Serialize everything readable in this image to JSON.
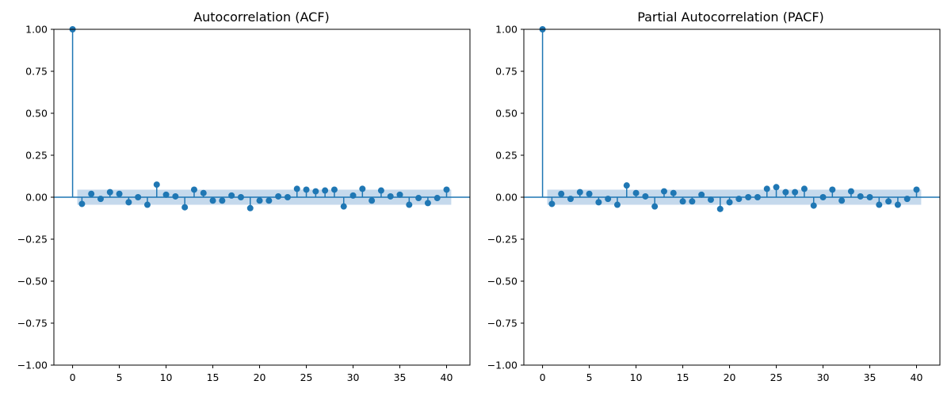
{
  "chart_data": [
    {
      "type": "stem",
      "title": "Autocorrelation (ACF)",
      "xlabel": "",
      "ylabel": "",
      "xlim": [
        -2,
        42.5
      ],
      "ylim": [
        -1.0,
        1.0
      ],
      "xticks": [
        0,
        5,
        10,
        15,
        20,
        25,
        30,
        35,
        40
      ],
      "xtick_labels": [
        "0",
        "5",
        "10",
        "15",
        "20",
        "25",
        "30",
        "35",
        "40"
      ],
      "yticks": [
        1.0,
        0.75,
        0.5,
        0.25,
        0.0,
        -0.25,
        -0.5,
        -0.75,
        -1.0
      ],
      "ytick_labels": [
        "1.00",
        "0.75",
        "0.50",
        "0.25",
        "0.00",
        "−0.25",
        "−0.50",
        "−0.75",
        "−1.00"
      ],
      "confidence_band": 0.045,
      "x": [
        0,
        1,
        2,
        3,
        4,
        5,
        6,
        7,
        8,
        9,
        10,
        11,
        12,
        13,
        14,
        15,
        16,
        17,
        18,
        19,
        20,
        21,
        22,
        23,
        24,
        25,
        26,
        27,
        28,
        29,
        30,
        31,
        32,
        33,
        34,
        35,
        36,
        37,
        38,
        39,
        40
      ],
      "values": [
        1.0,
        -0.04,
        0.02,
        -0.01,
        0.03,
        0.02,
        -0.03,
        0.0,
        -0.045,
        0.075,
        0.015,
        0.005,
        -0.06,
        0.045,
        0.025,
        -0.02,
        -0.02,
        0.01,
        0.0,
        -0.065,
        -0.02,
        -0.02,
        0.005,
        0.0,
        0.05,
        0.045,
        0.035,
        0.04,
        0.045,
        -0.055,
        0.01,
        0.05,
        -0.02,
        0.04,
        0.005,
        0.015,
        -0.045,
        -0.005,
        -0.035,
        -0.005,
        0.045
      ],
      "color": "#1f77b4",
      "band_color": "#c5d9ec",
      "grid": false
    },
    {
      "type": "stem",
      "title": "Partial Autocorrelation (PACF)",
      "xlabel": "",
      "ylabel": "",
      "xlim": [
        -2,
        42.5
      ],
      "ylim": [
        -1.0,
        1.0
      ],
      "xticks": [
        0,
        5,
        10,
        15,
        20,
        25,
        30,
        35,
        40
      ],
      "xtick_labels": [
        "0",
        "5",
        "10",
        "15",
        "20",
        "25",
        "30",
        "35",
        "40"
      ],
      "yticks": [
        1.0,
        0.75,
        0.5,
        0.25,
        0.0,
        -0.25,
        -0.5,
        -0.75,
        -1.0
      ],
      "ytick_labels": [
        "1.00",
        "0.75",
        "0.50",
        "0.25",
        "0.00",
        "−0.25",
        "−0.50",
        "−0.75",
        "−1.00"
      ],
      "confidence_band": 0.045,
      "x": [
        0,
        1,
        2,
        3,
        4,
        5,
        6,
        7,
        8,
        9,
        10,
        11,
        12,
        13,
        14,
        15,
        16,
        17,
        18,
        19,
        20,
        21,
        22,
        23,
        24,
        25,
        26,
        27,
        28,
        29,
        30,
        31,
        32,
        33,
        34,
        35,
        36,
        37,
        38,
        39,
        40
      ],
      "values": [
        1.0,
        -0.04,
        0.02,
        -0.01,
        0.03,
        0.02,
        -0.03,
        -0.01,
        -0.045,
        0.07,
        0.025,
        0.005,
        -0.055,
        0.035,
        0.025,
        -0.025,
        -0.025,
        0.015,
        -0.015,
        -0.07,
        -0.03,
        -0.01,
        0.0,
        0.0,
        0.05,
        0.06,
        0.03,
        0.03,
        0.05,
        -0.05,
        0.0,
        0.045,
        -0.02,
        0.035,
        0.005,
        0.0,
        -0.045,
        -0.025,
        -0.045,
        -0.01,
        0.045
      ],
      "color": "#1f77b4",
      "band_color": "#c5d9ec",
      "grid": false
    }
  ]
}
